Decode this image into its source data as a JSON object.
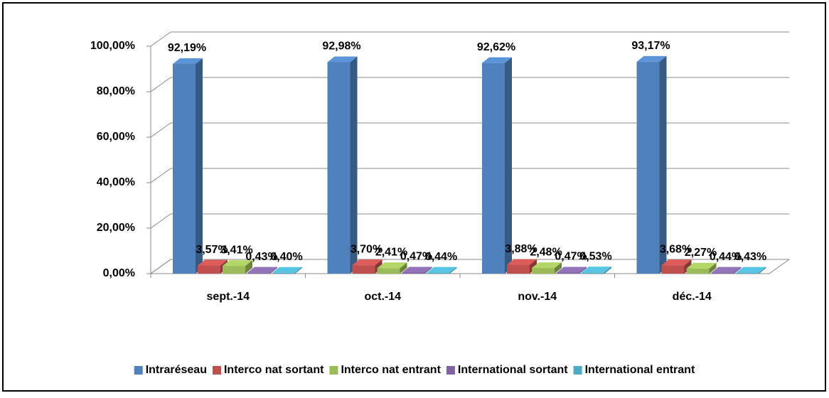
{
  "chart_data": {
    "type": "bar",
    "three_d": true,
    "categories": [
      "sept.-14",
      "oct.-14",
      "nov.-14",
      "déc.-14"
    ],
    "series": [
      {
        "name": "Intraréseau",
        "color": "#4f81bd",
        "values": [
          92.19,
          92.98,
          92.62,
          93.17
        ],
        "value_labels": [
          "92,19%",
          "92,98%",
          "92,62%",
          "93,17%"
        ]
      },
      {
        "name": "Interco nat sortant",
        "color": "#c0504d",
        "values": [
          3.57,
          3.7,
          3.88,
          3.68
        ],
        "value_labels": [
          "3,57%",
          "3,70%",
          "3,88%",
          "3,68%"
        ]
      },
      {
        "name": "Interco nat entrant",
        "color": "#9bbb59",
        "values": [
          3.41,
          2.41,
          2.48,
          2.27
        ],
        "value_labels": [
          "3,41%",
          "2,41%",
          "2,48%",
          "2,27%"
        ]
      },
      {
        "name": "International sortant",
        "color": "#8064a2",
        "values": [
          0.43,
          0.47,
          0.47,
          0.44
        ],
        "value_labels": [
          "0,43%",
          "0,47%",
          "0,47%",
          "0,44%"
        ]
      },
      {
        "name": "International entrant",
        "color": "#4bacc6",
        "values": [
          0.4,
          0.44,
          0.53,
          0.43
        ],
        "value_labels": [
          "0,40%",
          "0,44%",
          "0,53%",
          "0,43%"
        ]
      }
    ],
    "ylim": [
      0,
      100
    ],
    "yticks": [
      {
        "value": 0,
        "label": "0,00%"
      },
      {
        "value": 20,
        "label": "20,00%"
      },
      {
        "value": 40,
        "label": "40,00%"
      },
      {
        "value": 60,
        "label": "60,00%"
      },
      {
        "value": 80,
        "label": "80,00%"
      },
      {
        "value": 100,
        "label": "100,00%"
      }
    ],
    "grid": true,
    "legend": "bottom"
  }
}
